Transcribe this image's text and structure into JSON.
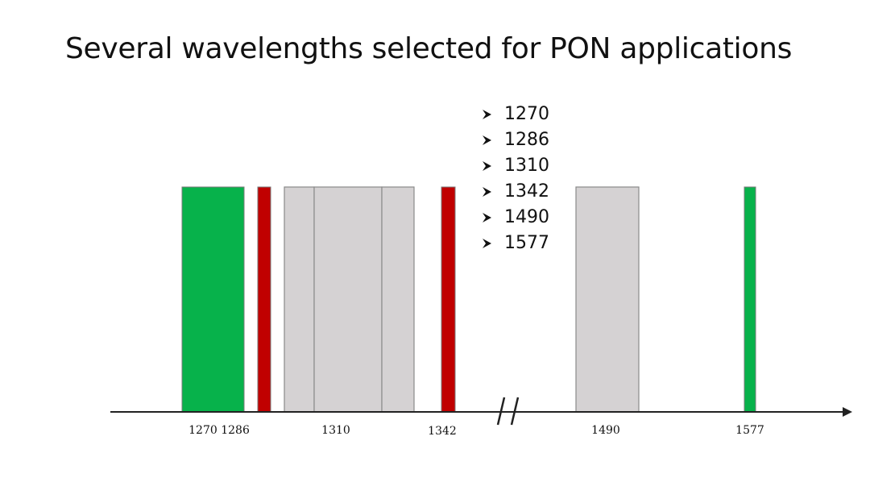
{
  "title": "Several wavelengths selected for PON applications",
  "bullets": [
    "1270",
    "1286",
    "1310",
    "1342",
    "1490",
    "1577"
  ],
  "colors": {
    "green": "#07b24b",
    "red": "#c00000",
    "gray": "#d5d2d3",
    "axis": "#222222"
  },
  "axis_labels": [
    "1270 1286",
    "1310",
    "1342",
    "1490",
    "1577"
  ]
}
